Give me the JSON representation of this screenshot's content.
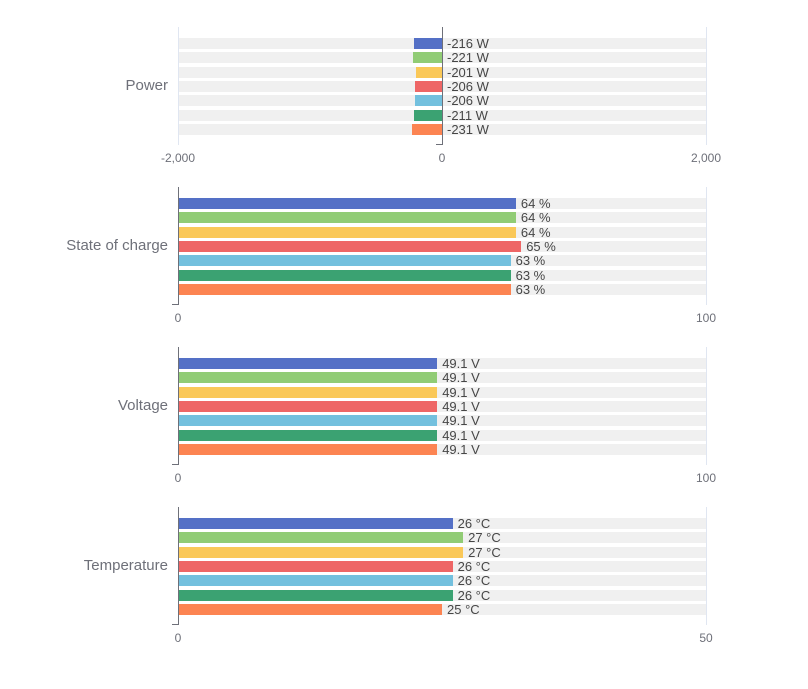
{
  "palette": [
    "#5470c6",
    "#91cc75",
    "#fac858",
    "#ee6666",
    "#73c0de",
    "#3ba272",
    "#fc8452"
  ],
  "colors": {
    "background": "#ffffff",
    "track": "rgba(180,180,180,0.2)",
    "grid_line": "#E0E6F1",
    "axis_line": "#6E7079",
    "category_label": "#6E7079",
    "axis_label": "#6E7079",
    "value_label": "#464646"
  },
  "chart_data": [
    {
      "type": "bar",
      "orientation": "horizontal",
      "title": "Power",
      "unit": "W",
      "xlim": [
        -2000,
        2000
      ],
      "grid": true,
      "x_ticks": [
        {
          "label": "-2,000",
          "value": -2000
        },
        {
          "label": "0",
          "value": 0
        },
        {
          "label": "2,000",
          "value": 2000
        }
      ],
      "values": [
        -216,
        -221,
        -201,
        -206,
        -206,
        -211,
        -231
      ],
      "labels": [
        "-216 W",
        "-221 W",
        "-201 W",
        "-206 W",
        "-206 W",
        "-211 W",
        "-231 W"
      ]
    },
    {
      "type": "bar",
      "orientation": "horizontal",
      "title": "State of charge",
      "unit": "%",
      "xlim": [
        0,
        100
      ],
      "grid": true,
      "x_ticks": [
        {
          "label": "0",
          "value": 0
        },
        {
          "label": "100",
          "value": 100
        }
      ],
      "values": [
        64,
        64,
        64,
        65,
        63,
        63,
        63
      ],
      "labels": [
        "64 %",
        "64 %",
        "64 %",
        "65 %",
        "63 %",
        "63 %",
        "63 %"
      ]
    },
    {
      "type": "bar",
      "orientation": "horizontal",
      "title": "Voltage",
      "unit": "V",
      "xlim": [
        0,
        100
      ],
      "grid": true,
      "x_ticks": [
        {
          "label": "0",
          "value": 0
        },
        {
          "label": "100",
          "value": 100
        }
      ],
      "values": [
        49.1,
        49.1,
        49.1,
        49.1,
        49.1,
        49.1,
        49.1
      ],
      "labels": [
        "49.1 V",
        "49.1 V",
        "49.1 V",
        "49.1 V",
        "49.1 V",
        "49.1 V",
        "49.1 V"
      ]
    },
    {
      "type": "bar",
      "orientation": "horizontal",
      "title": "Temperature",
      "unit": "°C",
      "xlim": [
        0,
        50
      ],
      "grid": true,
      "x_ticks": [
        {
          "label": "0",
          "value": 0
        },
        {
          "label": "50",
          "value": 50
        }
      ],
      "values": [
        26,
        27,
        27,
        26,
        26,
        26,
        25
      ],
      "labels": [
        "26 °C",
        "27 °C",
        "27 °C",
        "26 °C",
        "26 °C",
        "26 °C",
        "25 °C"
      ]
    }
  ]
}
